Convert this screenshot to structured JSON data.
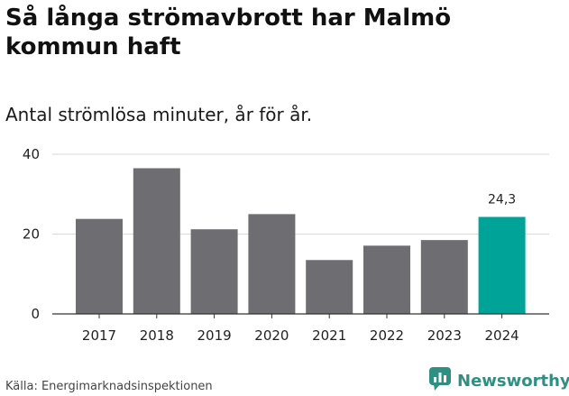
{
  "title": "Så långa strömavbrott har Malmö kommun haft",
  "subtitle": "Antal strömlösa minuter, år för år.",
  "source": "Källa: Energimarknadsinspektionen",
  "brand": {
    "name": "Newsworthy",
    "icon": "newsworthy-logo-icon",
    "color": "#2f8f83"
  },
  "colors": {
    "bar": "#6e6d71",
    "highlight": "#00a398",
    "grid": "#d9d9d9",
    "axis": "#333333"
  },
  "chart_data": {
    "type": "bar",
    "title": "Så långa strömavbrott har Malmö kommun haft",
    "subtitle": "Antal strömlösa minuter, år för år.",
    "categories": [
      "2017",
      "2018",
      "2019",
      "2020",
      "2021",
      "2022",
      "2023",
      "2024"
    ],
    "values": [
      23.8,
      36.5,
      21.2,
      25.0,
      13.5,
      17.1,
      18.5,
      24.3
    ],
    "highlight_index": 7,
    "value_labels": [
      null,
      null,
      null,
      null,
      null,
      null,
      null,
      "24,3"
    ],
    "yticks": [
      0,
      20,
      40
    ],
    "ytick_labels": [
      "0",
      "20",
      "40"
    ],
    "ylim": [
      0,
      40
    ],
    "xlabel": "",
    "ylabel": "",
    "grid": true
  }
}
